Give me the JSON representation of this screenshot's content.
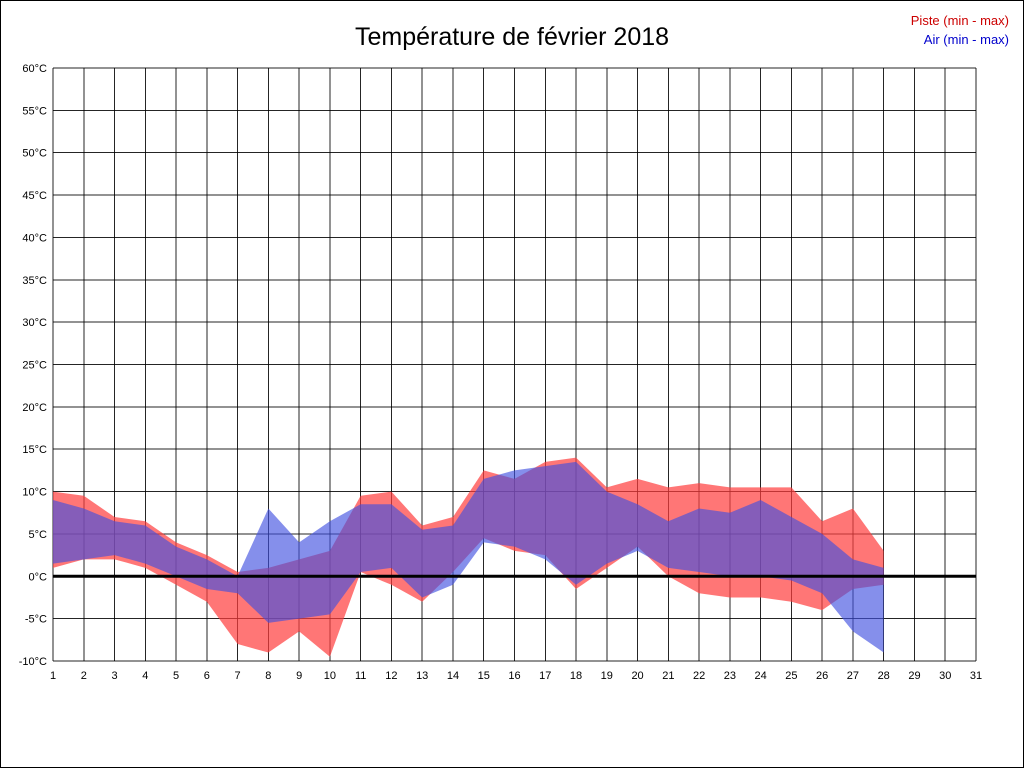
{
  "title": "Température de février 2018",
  "legend": {
    "piste": {
      "label": "Piste (min - max)",
      "color": "#cc0000"
    },
    "air": {
      "label": "Air (min - max)",
      "color": "#0000cc"
    }
  },
  "chart_data": {
    "type": "area",
    "title": "Température de février 2018",
    "xlabel": "",
    "ylabel": "",
    "xlim": [
      1,
      31
    ],
    "ylim": [
      -10,
      60
    ],
    "ytick_step": 5,
    "y_unit": "°C",
    "grid": true,
    "zero_line": true,
    "legend_position": "top-right",
    "x": [
      1,
      2,
      3,
      4,
      5,
      6,
      7,
      8,
      9,
      10,
      11,
      12,
      13,
      14,
      15,
      16,
      17,
      18,
      19,
      20,
      21,
      22,
      23,
      24,
      25,
      26,
      27,
      28
    ],
    "series": [
      {
        "name": "Piste (min - max)",
        "fill": "#ff3c3c",
        "opacity": 0.7,
        "max": [
          10,
          9.5,
          7,
          6.5,
          4,
          2.5,
          0.5,
          1,
          2,
          3,
          9.5,
          10,
          6,
          7,
          12.5,
          11.5,
          13.5,
          14,
          10.5,
          11.5,
          10.5,
          11,
          10.5,
          10.5,
          10.5,
          6.5,
          8,
          3
        ],
        "min": [
          1,
          2,
          2,
          1,
          -1,
          -3,
          -8,
          -9,
          -6.5,
          -9.5,
          0.5,
          -1,
          -3,
          0.5,
          4.5,
          3,
          2.5,
          -1.5,
          1,
          3.5,
          0,
          -2,
          -2.5,
          -2.5,
          -3,
          -4,
          -1.5,
          -1
        ]
      },
      {
        "name": "Air (min - max)",
        "fill": "#4050e0",
        "opacity": 0.64,
        "max": [
          9,
          8,
          6.5,
          6,
          3.5,
          2,
          0,
          8,
          4,
          6.5,
          8.5,
          8.5,
          5.5,
          6,
          11.5,
          12.5,
          13,
          13.5,
          10,
          8.5,
          6.5,
          8,
          7.5,
          9,
          7,
          5,
          2,
          1
        ],
        "min": [
          1.5,
          2,
          2.5,
          1.5,
          0,
          -1.5,
          -2,
          -5.5,
          -5,
          -4.5,
          0.5,
          1,
          -2.5,
          -1,
          4,
          3.5,
          2,
          -1,
          1.5,
          3,
          1,
          0.5,
          0,
          0,
          -0.5,
          -2,
          -6.5,
          -9
        ]
      }
    ]
  }
}
